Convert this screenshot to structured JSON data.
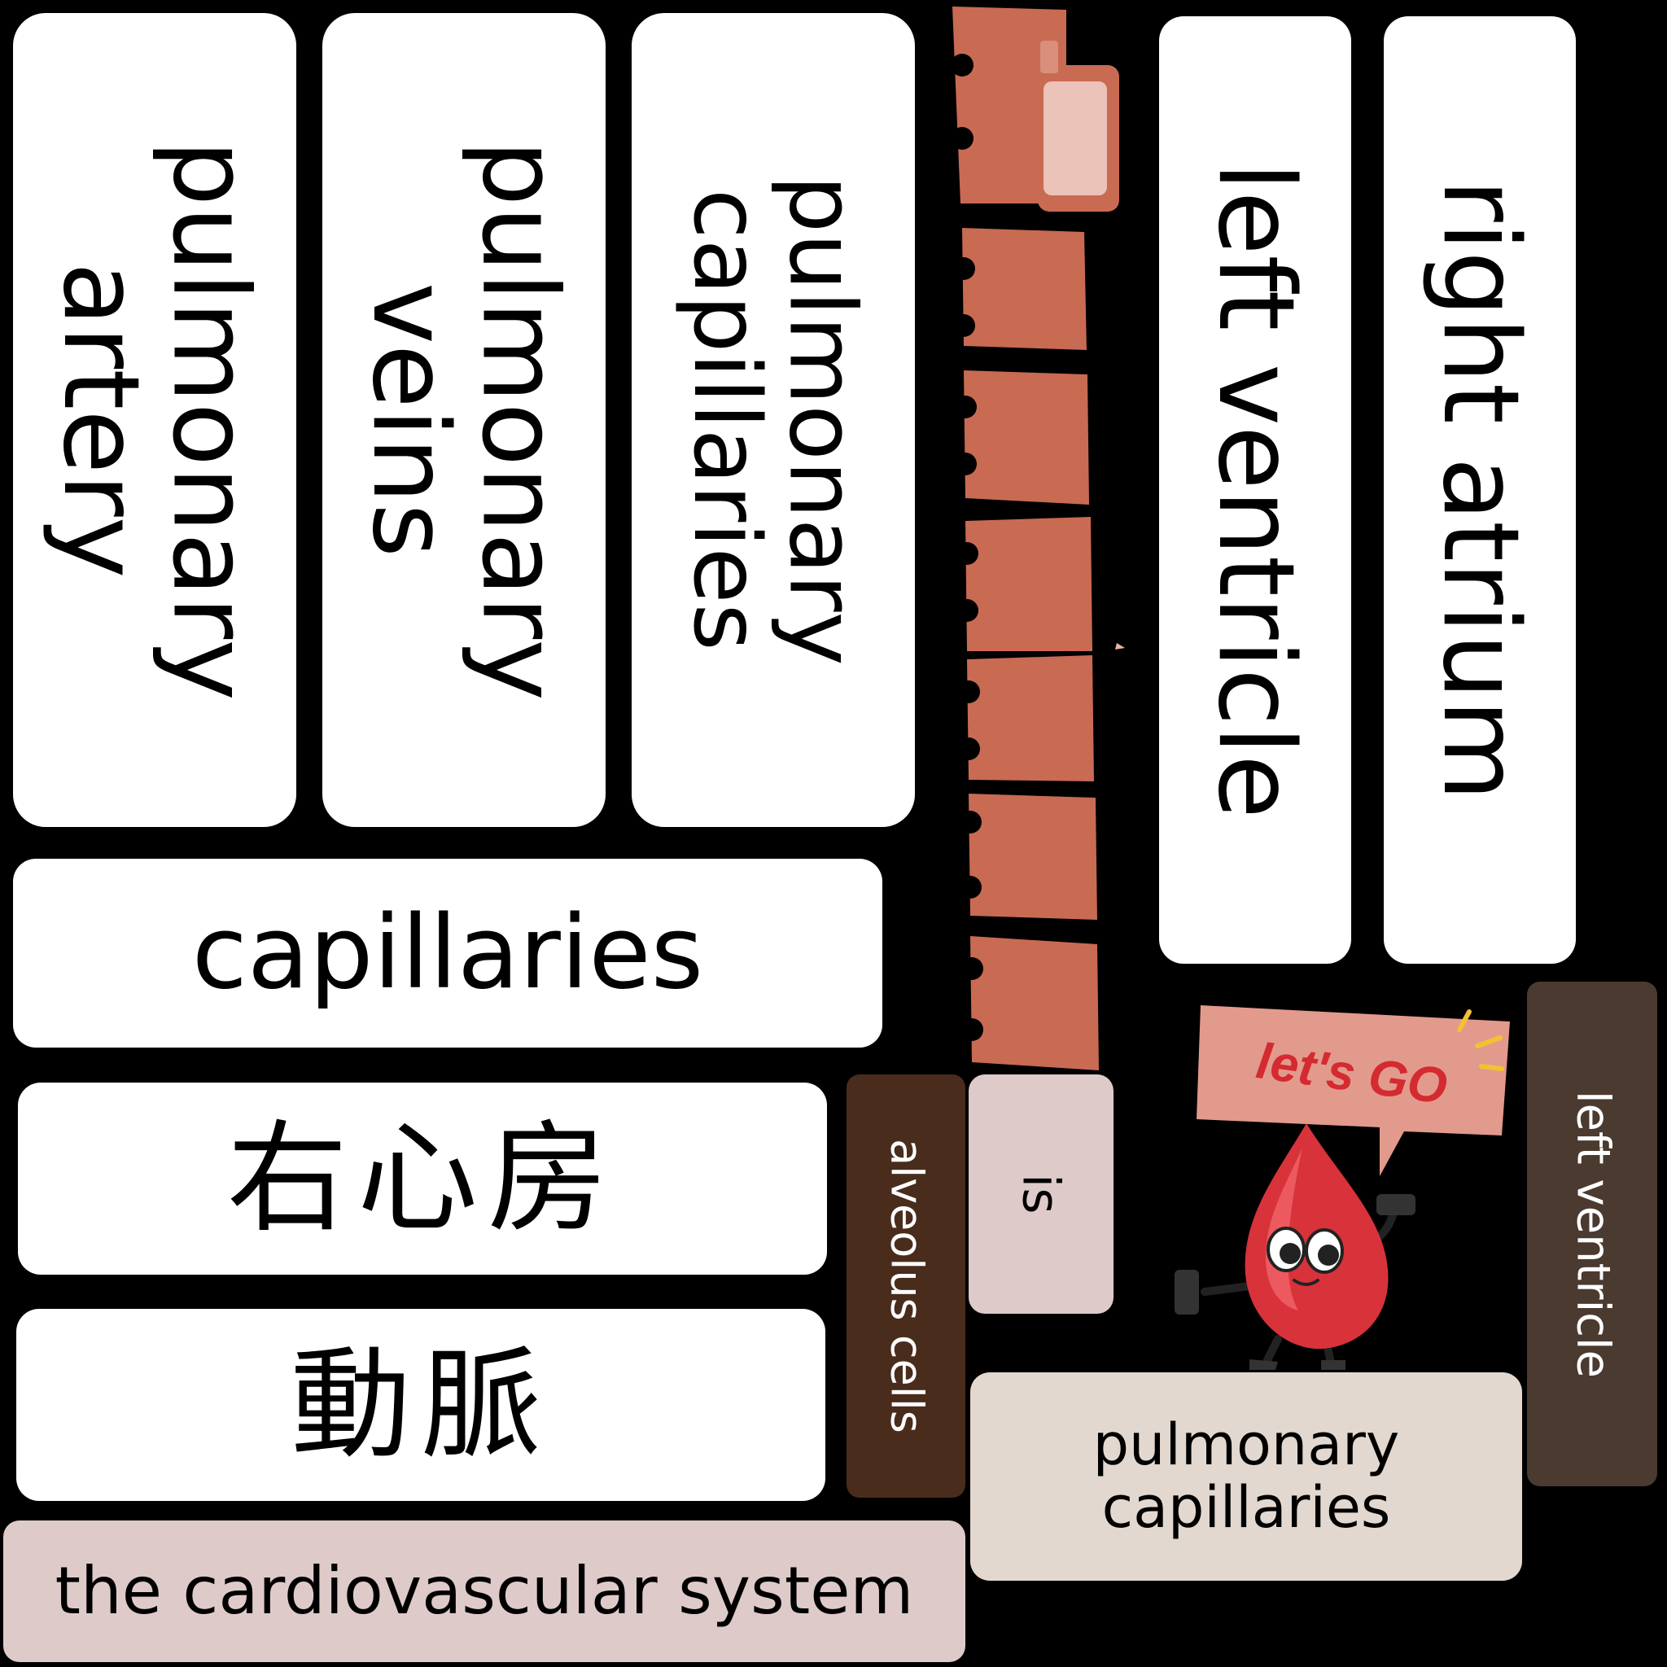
{
  "cards": {
    "pulmonary_artery": "pulmonary artery",
    "pulmonary_veins": "pulmonary veins",
    "pulmonary_capillaries_top": "pulmonary capillaries",
    "left_ventricle_top": "left ventricle",
    "right_atrium": "right atrium",
    "capillaries": "capillaries",
    "right_atrium_zh": "右心房",
    "artery_zh": "動脈",
    "alveolus_cells": "alveolus cells",
    "is": "is",
    "pulmonary_capillaries_bottom": "pulmonary capillaries",
    "left_ventricle_side": "left ventricle",
    "cardiovascular_system": "the cardiovascular system"
  },
  "mascot": {
    "speech_bubble": "let's GO"
  },
  "colors": {
    "background": "#000000",
    "card_white": "#ffffff",
    "card_brown": "#4a2c1c",
    "card_pink": "#dfcaca",
    "card_beige": "#e3d8cf",
    "notebook_spine": "#c96a53",
    "drop_red": "#d8323a"
  }
}
